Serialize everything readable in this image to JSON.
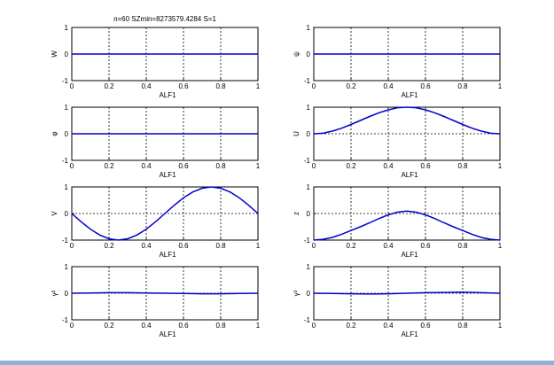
{
  "figure": {
    "title": "n=60 SZmin=8273579.4284 S=1"
  },
  "colors": {
    "line": "#0000cc",
    "frame": "#000000",
    "bottom_bar": "#8fb0d8"
  },
  "chart_data": [
    {
      "type": "line",
      "ylabel": "W",
      "xlabel": "ALF1",
      "xlim": [
        0,
        1
      ],
      "ylim": [
        -1,
        1
      ],
      "xticks": [
        "0",
        "0.2",
        "0.4",
        "0.6",
        "0.8",
        "1"
      ],
      "yticks": [
        "-1",
        "0",
        "1"
      ],
      "grid": true,
      "series": [
        {
          "x": [
            0,
            0.25,
            0.5,
            0.75,
            1
          ],
          "y": [
            0,
            0,
            0,
            0,
            0
          ]
        }
      ]
    },
    {
      "type": "line",
      "ylabel": "ψ",
      "xlabel": "ALF1",
      "xlim": [
        0,
        1
      ],
      "ylim": [
        -1,
        1
      ],
      "xticks": [
        "0",
        "0.2",
        "0.4",
        "0.6",
        "0.8",
        "1"
      ],
      "yticks": [
        "-1",
        "0",
        "1"
      ],
      "grid": true,
      "series": [
        {
          "x": [
            0,
            0.25,
            0.5,
            0.75,
            1
          ],
          "y": [
            0,
            0,
            0,
            0,
            0
          ]
        }
      ]
    },
    {
      "type": "line",
      "ylabel": "φ",
      "xlabel": "ALF1",
      "xlim": [
        0,
        1
      ],
      "ylim": [
        -1,
        1
      ],
      "xticks": [
        "0",
        "0.2",
        "0.4",
        "0.6",
        "0.8",
        "1"
      ],
      "yticks": [
        "-1",
        "0",
        "1"
      ],
      "grid": true,
      "series": [
        {
          "x": [
            0,
            0.25,
            0.5,
            0.75,
            1
          ],
          "y": [
            0,
            0,
            0,
            0,
            0
          ]
        }
      ]
    },
    {
      "type": "line",
      "ylabel": "U",
      "xlabel": "ALF1",
      "xlim": [
        0,
        1
      ],
      "ylim": [
        -1,
        1
      ],
      "xticks": [
        "0",
        "0.2",
        "0.4",
        "0.6",
        "0.8",
        "1"
      ],
      "yticks": [
        "-1",
        "0",
        "1"
      ],
      "grid": true,
      "series": [
        {
          "x": [
            0,
            0.05,
            0.1,
            0.15,
            0.2,
            0.25,
            0.3,
            0.35,
            0.4,
            0.45,
            0.5,
            0.55,
            0.6,
            0.65,
            0.7,
            0.75,
            0.8,
            0.85,
            0.9,
            0.95,
            1
          ],
          "y": [
            0,
            0.02,
            0.1,
            0.21,
            0.35,
            0.5,
            0.65,
            0.79,
            0.9,
            0.98,
            1,
            0.98,
            0.9,
            0.79,
            0.65,
            0.5,
            0.35,
            0.21,
            0.1,
            0.02,
            0
          ]
        }
      ]
    },
    {
      "type": "line",
      "ylabel": "V",
      "xlabel": "ALF1",
      "xlim": [
        0,
        1
      ],
      "ylim": [
        -1,
        1
      ],
      "xticks": [
        "0",
        "0.2",
        "0.4",
        "0.6",
        "0.8",
        "1"
      ],
      "yticks": [
        "-1",
        "0",
        "1"
      ],
      "grid": true,
      "series": [
        {
          "x": [
            0,
            0.05,
            0.1,
            0.15,
            0.2,
            0.25,
            0.3,
            0.35,
            0.4,
            0.45,
            0.5,
            0.55,
            0.6,
            0.65,
            0.7,
            0.75,
            0.8,
            0.85,
            0.9,
            0.95,
            1
          ],
          "y": [
            0,
            -0.31,
            -0.59,
            -0.81,
            -0.95,
            -1,
            -0.95,
            -0.81,
            -0.59,
            -0.31,
            0,
            0.31,
            0.59,
            0.81,
            0.95,
            1,
            0.95,
            0.81,
            0.59,
            0.31,
            0
          ]
        }
      ]
    },
    {
      "type": "line",
      "ylabel": "z",
      "xlabel": "ALF1",
      "xlim": [
        0,
        1
      ],
      "ylim": [
        -1,
        1
      ],
      "xticks": [
        "0",
        "0.2",
        "0.4",
        "0.6",
        "0.8",
        "1"
      ],
      "yticks": [
        "-1",
        "0",
        "1"
      ],
      "grid": true,
      "series": [
        {
          "x": [
            0,
            0.05,
            0.1,
            0.15,
            0.2,
            0.25,
            0.3,
            0.35,
            0.4,
            0.45,
            0.5,
            0.55,
            0.6,
            0.65,
            0.7,
            0.75,
            0.8,
            0.85,
            0.9,
            0.95,
            1
          ],
          "y": [
            -1,
            -0.97,
            -0.9,
            -0.78,
            -0.64,
            -0.5,
            -0.35,
            -0.19,
            -0.05,
            0.05,
            0.09,
            0.05,
            -0.05,
            -0.19,
            -0.35,
            -0.5,
            -0.64,
            -0.78,
            -0.9,
            -0.97,
            -1
          ]
        }
      ]
    },
    {
      "type": "line",
      "ylabel": "γ²",
      "xlabel": "ALF1",
      "xlim": [
        0,
        1
      ],
      "ylim": [
        -1,
        1
      ],
      "xticks": [
        "0",
        "0.2",
        "0.4",
        "0.6",
        "0.8",
        "1"
      ],
      "yticks": [
        "-1",
        "0",
        "1"
      ],
      "grid": true,
      "series": [
        {
          "x": [
            0,
            0.1,
            0.2,
            0.3,
            0.4,
            0.5,
            0.6,
            0.7,
            0.8,
            0.9,
            1
          ],
          "y": [
            0,
            0.01,
            0.02,
            0.02,
            0.01,
            0,
            -0.01,
            -0.02,
            -0.02,
            -0.01,
            0
          ]
        }
      ]
    },
    {
      "type": "line",
      "ylabel": "γ³",
      "xlabel": "ALF1",
      "xlim": [
        0,
        1
      ],
      "ylim": [
        -1,
        1
      ],
      "xticks": [
        "0",
        "0.2",
        "0.4",
        "0.6",
        "0.8",
        "1"
      ],
      "yticks": [
        "-1",
        "0",
        "1"
      ],
      "grid": true,
      "series": [
        {
          "x": [
            0,
            0.1,
            0.2,
            0.3,
            0.4,
            0.5,
            0.6,
            0.7,
            0.8,
            0.9,
            1
          ],
          "y": [
            0,
            -0.01,
            -0.02,
            -0.03,
            -0.02,
            0,
            0.02,
            0.03,
            0.04,
            0.02,
            0
          ]
        }
      ]
    }
  ]
}
